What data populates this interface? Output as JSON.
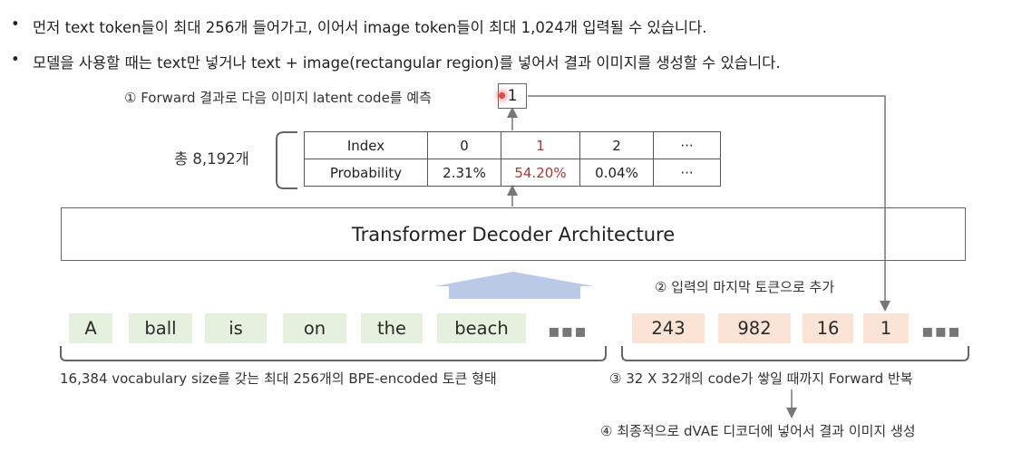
{
  "bullets": [
    "먼저 text token들이 최대 256개 들어가고, 이어서 image token들이 최대 1,024개 입력될 수 있습니다.",
    "모델을 사용할 때는 text만 넣거나 text + image(rectangular region)를 넣어서 결과 이미지를 생성할 수 있습니다."
  ],
  "bullet_symbol": "•",
  "step1": "① Forward 결과로 다음 이미지 latent code를 예측",
  "output_token": "1",
  "total_label": "총 8,192개",
  "table": {
    "row1": [
      "Index",
      "0",
      "1",
      "2",
      "···"
    ],
    "row2": [
      "Probability",
      "2.31%",
      "54.20%",
      "0.04%",
      "···"
    ]
  },
  "architecture": "Transformer Decoder Architecture",
  "step2": "② 입력의 마지막 토큰으로 추가",
  "text_tokens": [
    "A",
    "ball",
    "is",
    "on",
    "the",
    "beach"
  ],
  "image_tokens": [
    "243",
    "982",
    "16",
    "1"
  ],
  "ellipsis": "▪▪▪",
  "text_caption": "16,384 vocabulary size를 갖는 최대 256개의 BPE-encoded 토큰 형태",
  "step3": "③ 32 X 32개의 code가 쌓일 때까지 Forward 반복",
  "step4": "④ 최종적으로 dVAE 디코더에 넣어서 결과 이미지 생성",
  "colors": {
    "text_token_bg": "#e6f0df",
    "image_token_bg": "#fbe4d6",
    "highlight": "#a23a3a",
    "big_arrow": "#b9c9e6"
  }
}
